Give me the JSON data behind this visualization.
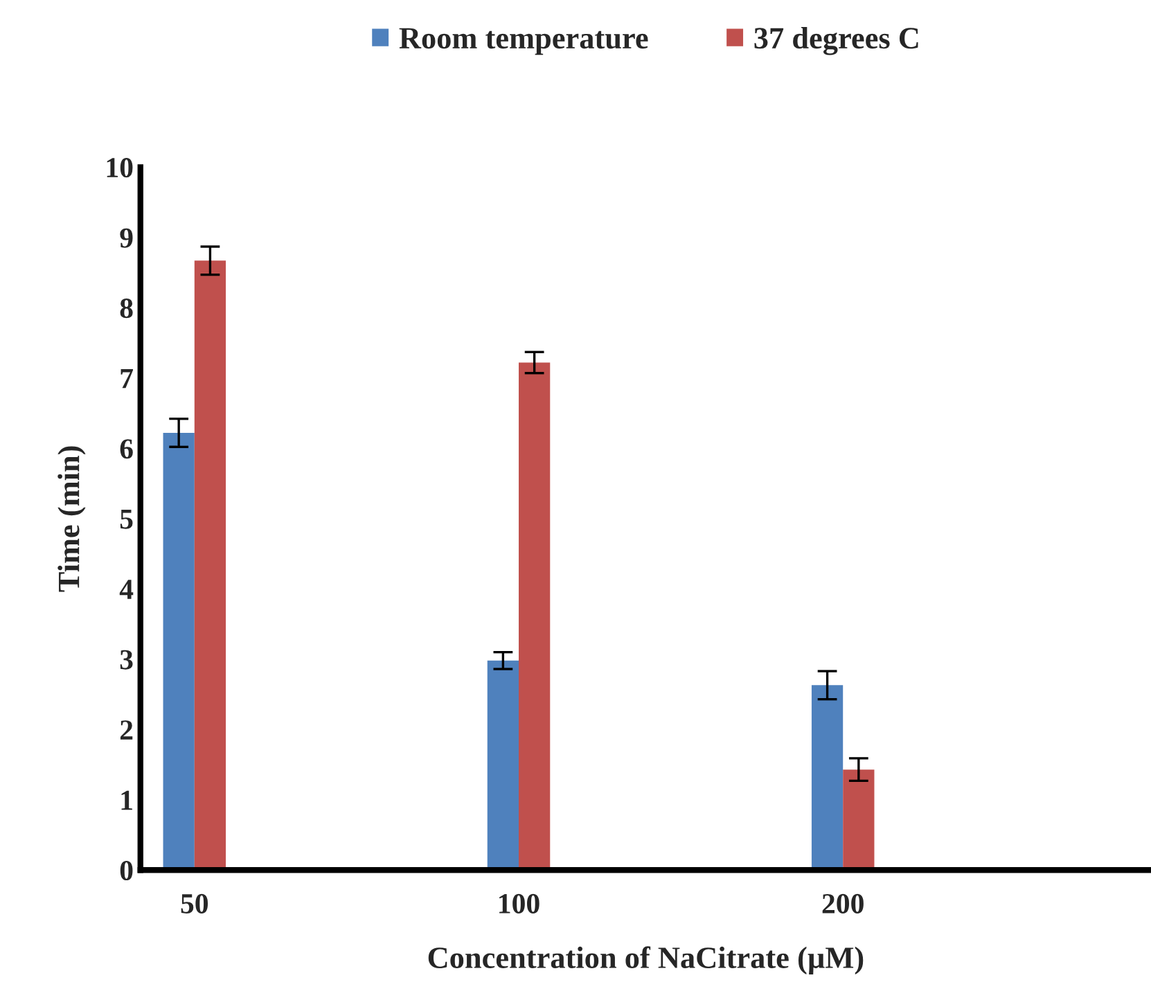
{
  "chart_data": {
    "type": "bar",
    "xlabel": "Concentration of NaCitrate (µM)",
    "ylabel": "Time (min)",
    "categories": [
      "50",
      null,
      null,
      "100",
      null,
      null,
      "200",
      null,
      null
    ],
    "series": [
      {
        "name": "Room temperature",
        "color": "#4f81bd",
        "values": [
          6.22,
          null,
          null,
          2.98,
          null,
          null,
          2.63,
          null,
          null
        ],
        "errors": [
          0.2,
          null,
          null,
          0.12,
          null,
          null,
          0.2,
          null,
          null
        ]
      },
      {
        "name": "37 degrees C",
        "color": "#c0504d",
        "values": [
          8.67,
          null,
          null,
          7.22,
          null,
          null,
          1.43,
          null,
          null
        ],
        "errors": [
          0.2,
          null,
          null,
          0.15,
          null,
          null,
          0.16,
          null,
          null
        ]
      }
    ],
    "ylim": [
      0,
      10
    ],
    "yticks": [
      0,
      1,
      2,
      3,
      4,
      5,
      6,
      7,
      8,
      9,
      10
    ],
    "grid": false,
    "legend": "top"
  }
}
